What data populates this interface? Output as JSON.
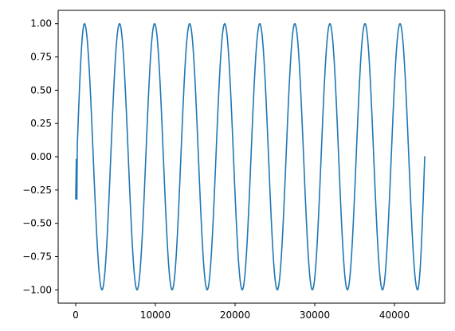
{
  "chart_data": {
    "type": "line",
    "title": "",
    "xlabel": "",
    "ylabel": "",
    "xlim": [
      -2200,
      46300
    ],
    "ylim": [
      -1.1,
      1.1
    ],
    "grid": false,
    "legend": "none",
    "x_ticks": [
      {
        "value": 0,
        "label": "0"
      },
      {
        "value": 10000,
        "label": "10000"
      },
      {
        "value": 20000,
        "label": "20000"
      },
      {
        "value": 30000,
        "label": "30000"
      },
      {
        "value": 40000,
        "label": "40000"
      }
    ],
    "y_ticks": [
      {
        "value": 1.0,
        "label": "1.00"
      },
      {
        "value": 0.75,
        "label": "0.75"
      },
      {
        "value": 0.5,
        "label": "0.50"
      },
      {
        "value": 0.25,
        "label": "0.25"
      },
      {
        "value": 0.0,
        "label": "0.00"
      },
      {
        "value": -0.25,
        "label": "−0.25"
      },
      {
        "value": -0.5,
        "label": "−0.50"
      },
      {
        "value": -0.75,
        "label": "−0.75"
      },
      {
        "value": -1.0,
        "label": "−1.00"
      }
    ],
    "series": [
      {
        "color": "#1f77b4",
        "points": [
          [
            0,
            -0.32
          ],
          [
            80,
            -0.02
          ],
          [
            150,
            -0.32
          ],
          [
            1100,
            1.0
          ],
          [
            2200,
            0.0
          ],
          [
            3300,
            -1.0
          ],
          [
            4400,
            0.0
          ],
          [
            5500,
            1.0
          ],
          [
            6600,
            0.0
          ],
          [
            7700,
            -1.0
          ],
          [
            8800,
            0.0
          ],
          [
            9900,
            1.0
          ],
          [
            11000,
            0.0
          ],
          [
            12100,
            -1.0
          ],
          [
            13200,
            0.0
          ],
          [
            14300,
            1.0
          ],
          [
            15400,
            0.0
          ],
          [
            16500,
            -1.0
          ],
          [
            17600,
            0.0
          ],
          [
            18700,
            1.0
          ],
          [
            19800,
            0.0
          ],
          [
            20900,
            -1.0
          ],
          [
            22000,
            0.0
          ],
          [
            23100,
            1.0
          ],
          [
            24200,
            0.0
          ],
          [
            25300,
            -1.0
          ],
          [
            26400,
            0.0
          ],
          [
            27500,
            1.0
          ],
          [
            28600,
            0.0
          ],
          [
            29700,
            -1.0
          ],
          [
            30800,
            0.0
          ],
          [
            31900,
            1.0
          ],
          [
            33000,
            0.0
          ],
          [
            34100,
            -1.0
          ],
          [
            35200,
            0.0
          ],
          [
            36300,
            1.0
          ],
          [
            37400,
            0.0
          ],
          [
            38500,
            -1.0
          ],
          [
            39600,
            0.0
          ],
          [
            40700,
            1.0
          ],
          [
            41800,
            0.0
          ],
          [
            42900,
            -1.0
          ],
          [
            43800,
            -0.34
          ],
          [
            43900,
            0.0
          ]
        ]
      }
    ]
  }
}
